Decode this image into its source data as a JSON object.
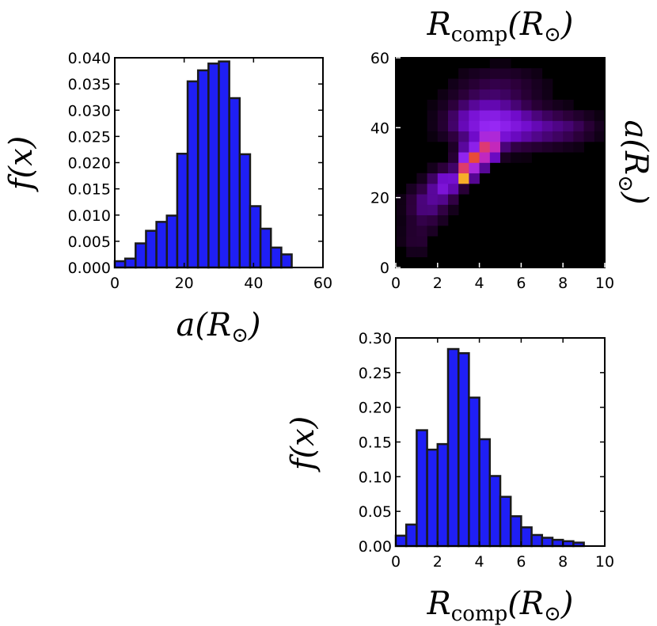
{
  "chart_data": [
    {
      "id": "hist_a",
      "type": "bar",
      "title": "",
      "xlabel": "a(R⊙)",
      "ylabel": "f(x)",
      "xlim": [
        0,
        60
      ],
      "ylim": [
        0,
        0.04
      ],
      "xticks": [
        0,
        20,
        40,
        60
      ],
      "yticks": [
        0.0,
        0.005,
        0.01,
        0.015,
        0.02,
        0.025,
        0.03,
        0.035,
        0.04
      ],
      "ytick_labels": [
        "0.000",
        "0.005",
        "0.010",
        "0.015",
        "0.020",
        "0.025",
        "0.030",
        "0.035",
        "0.040"
      ],
      "bin_edges": [
        0,
        3,
        6,
        9,
        12,
        15,
        18,
        21,
        24,
        27,
        30,
        33,
        36,
        39,
        42,
        45,
        48,
        51,
        54,
        57,
        60
      ],
      "values": [
        0.0012,
        0.0017,
        0.0046,
        0.007,
        0.0087,
        0.0099,
        0.0217,
        0.0355,
        0.0376,
        0.0389,
        0.0393,
        0.0323,
        0.0216,
        0.0117,
        0.0074,
        0.0038,
        0.0025,
        0,
        0,
        0
      ]
    },
    {
      "id": "heatmap_a_rcomp",
      "type": "heatmap",
      "title": "",
      "xlabel_top": "Rcomp(R⊙)",
      "ylabel_right": "a(R⊙)",
      "xlim": [
        0,
        10
      ],
      "ylim": [
        0,
        60
      ],
      "xticks": [
        0,
        2,
        4,
        6,
        8,
        10
      ],
      "yticks": [
        0,
        20,
        40,
        60
      ],
      "nx": 20,
      "ny": 20,
      "blobs": [
        {
          "x": 3.3,
          "y": 26.5,
          "sx": 0.25,
          "sy": 1.5,
          "amp": 1.0
        },
        {
          "x": 3.7,
          "y": 31.0,
          "sx": 0.45,
          "sy": 2.5,
          "amp": 0.72
        },
        {
          "x": 4.5,
          "y": 34.5,
          "sx": 0.35,
          "sy": 2.5,
          "amp": 0.55
        },
        {
          "x": 2.4,
          "y": 24.0,
          "sx": 0.5,
          "sy": 3.0,
          "amp": 0.35
        },
        {
          "x": 4.2,
          "y": 42.0,
          "sx": 1.2,
          "sy": 4.5,
          "amp": 0.32
        },
        {
          "x": 6.0,
          "y": 40.0,
          "sx": 1.6,
          "sy": 4.0,
          "amp": 0.25
        },
        {
          "x": 1.5,
          "y": 18.0,
          "sx": 0.7,
          "sy": 4.0,
          "amp": 0.22
        },
        {
          "x": 5.0,
          "y": 52.0,
          "sx": 1.5,
          "sy": 4.0,
          "amp": 0.12
        },
        {
          "x": 8.5,
          "y": 40.0,
          "sx": 1.0,
          "sy": 3.0,
          "amp": 0.1
        },
        {
          "x": 1.0,
          "y": 8.0,
          "sx": 0.6,
          "sy": 3.5,
          "amp": 0.1
        }
      ],
      "colormap": "gnuplot2-like"
    },
    {
      "id": "hist_rcomp",
      "type": "bar",
      "title": "",
      "xlabel": "Rcomp(R⊙)",
      "ylabel": "f(x)",
      "xlim": [
        0,
        10
      ],
      "ylim": [
        0,
        0.3
      ],
      "xticks": [
        0,
        2,
        4,
        6,
        8,
        10
      ],
      "yticks": [
        0.0,
        0.05,
        0.1,
        0.15,
        0.2,
        0.25,
        0.3
      ],
      "ytick_labels": [
        "0.00",
        "0.05",
        "0.10",
        "0.15",
        "0.20",
        "0.25",
        "0.30"
      ],
      "bin_edges": [
        0,
        0.5,
        1,
        1.5,
        2,
        2.5,
        3,
        3.5,
        4,
        4.5,
        5,
        5.5,
        6,
        6.5,
        7,
        7.5,
        8,
        8.5,
        9,
        9.5,
        10
      ],
      "values": [
        0.015,
        0.031,
        0.167,
        0.139,
        0.147,
        0.284,
        0.278,
        0.214,
        0.154,
        0.101,
        0.071,
        0.043,
        0.027,
        0.016,
        0.012,
        0.009,
        0.007,
        0.005,
        0,
        0
      ]
    }
  ],
  "labels": {
    "fx": "f(x)",
    "a_main": "a(R",
    "a_close": ")",
    "r_main": "R",
    "r_sub": "comp",
    "r_paren": "(R",
    "r_close": ")",
    "sun": "⊙"
  },
  "colors": {
    "bar_fill": "#1f1ff5",
    "bar_edge": "#1a1a1a",
    "heat_bg": "#000000"
  }
}
